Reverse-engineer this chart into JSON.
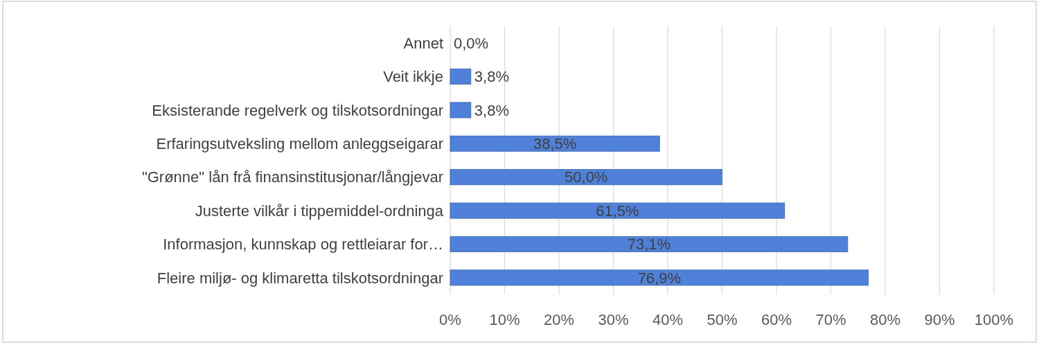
{
  "chart_data": {
    "type": "bar",
    "orientation": "horizontal",
    "categories": [
      "Annet",
      "Veit ikkje",
      "Eksisterande regelverk og tilskotsordningar",
      "Erfaringsutveksling mellom anleggseigarar",
      "\"Grønne\" lån frå finansinstitusjonar/långjevar",
      "Justerte vilkår i tippemiddel-ordninga",
      "Informasjon, kunnskap og rettleiarar for…",
      "Fleire miljø- og klimaretta tilskotsordningar"
    ],
    "values": [
      0.0,
      3.8,
      3.8,
      38.5,
      50.0,
      61.5,
      73.1,
      76.9
    ],
    "value_labels": [
      "0,0%",
      "3,8%",
      "3,8%",
      "38,5%",
      "50,0%",
      "61,5%",
      "73,1%",
      "76,9%"
    ],
    "color": "#4f81d9",
    "xlim": [
      0,
      100
    ],
    "xticks": [
      {
        "value": 0,
        "label": "0%"
      },
      {
        "value": 10,
        "label": "10%"
      },
      {
        "value": 20,
        "label": "20%"
      },
      {
        "value": 30,
        "label": "30%"
      },
      {
        "value": 40,
        "label": "40%"
      },
      {
        "value": 50,
        "label": "50%"
      },
      {
        "value": 60,
        "label": "60%"
      },
      {
        "value": 70,
        "label": "70%"
      },
      {
        "value": 80,
        "label": "80%"
      },
      {
        "value": 90,
        "label": "90%"
      },
      {
        "value": 100,
        "label": "100%"
      }
    ],
    "grid": true
  }
}
